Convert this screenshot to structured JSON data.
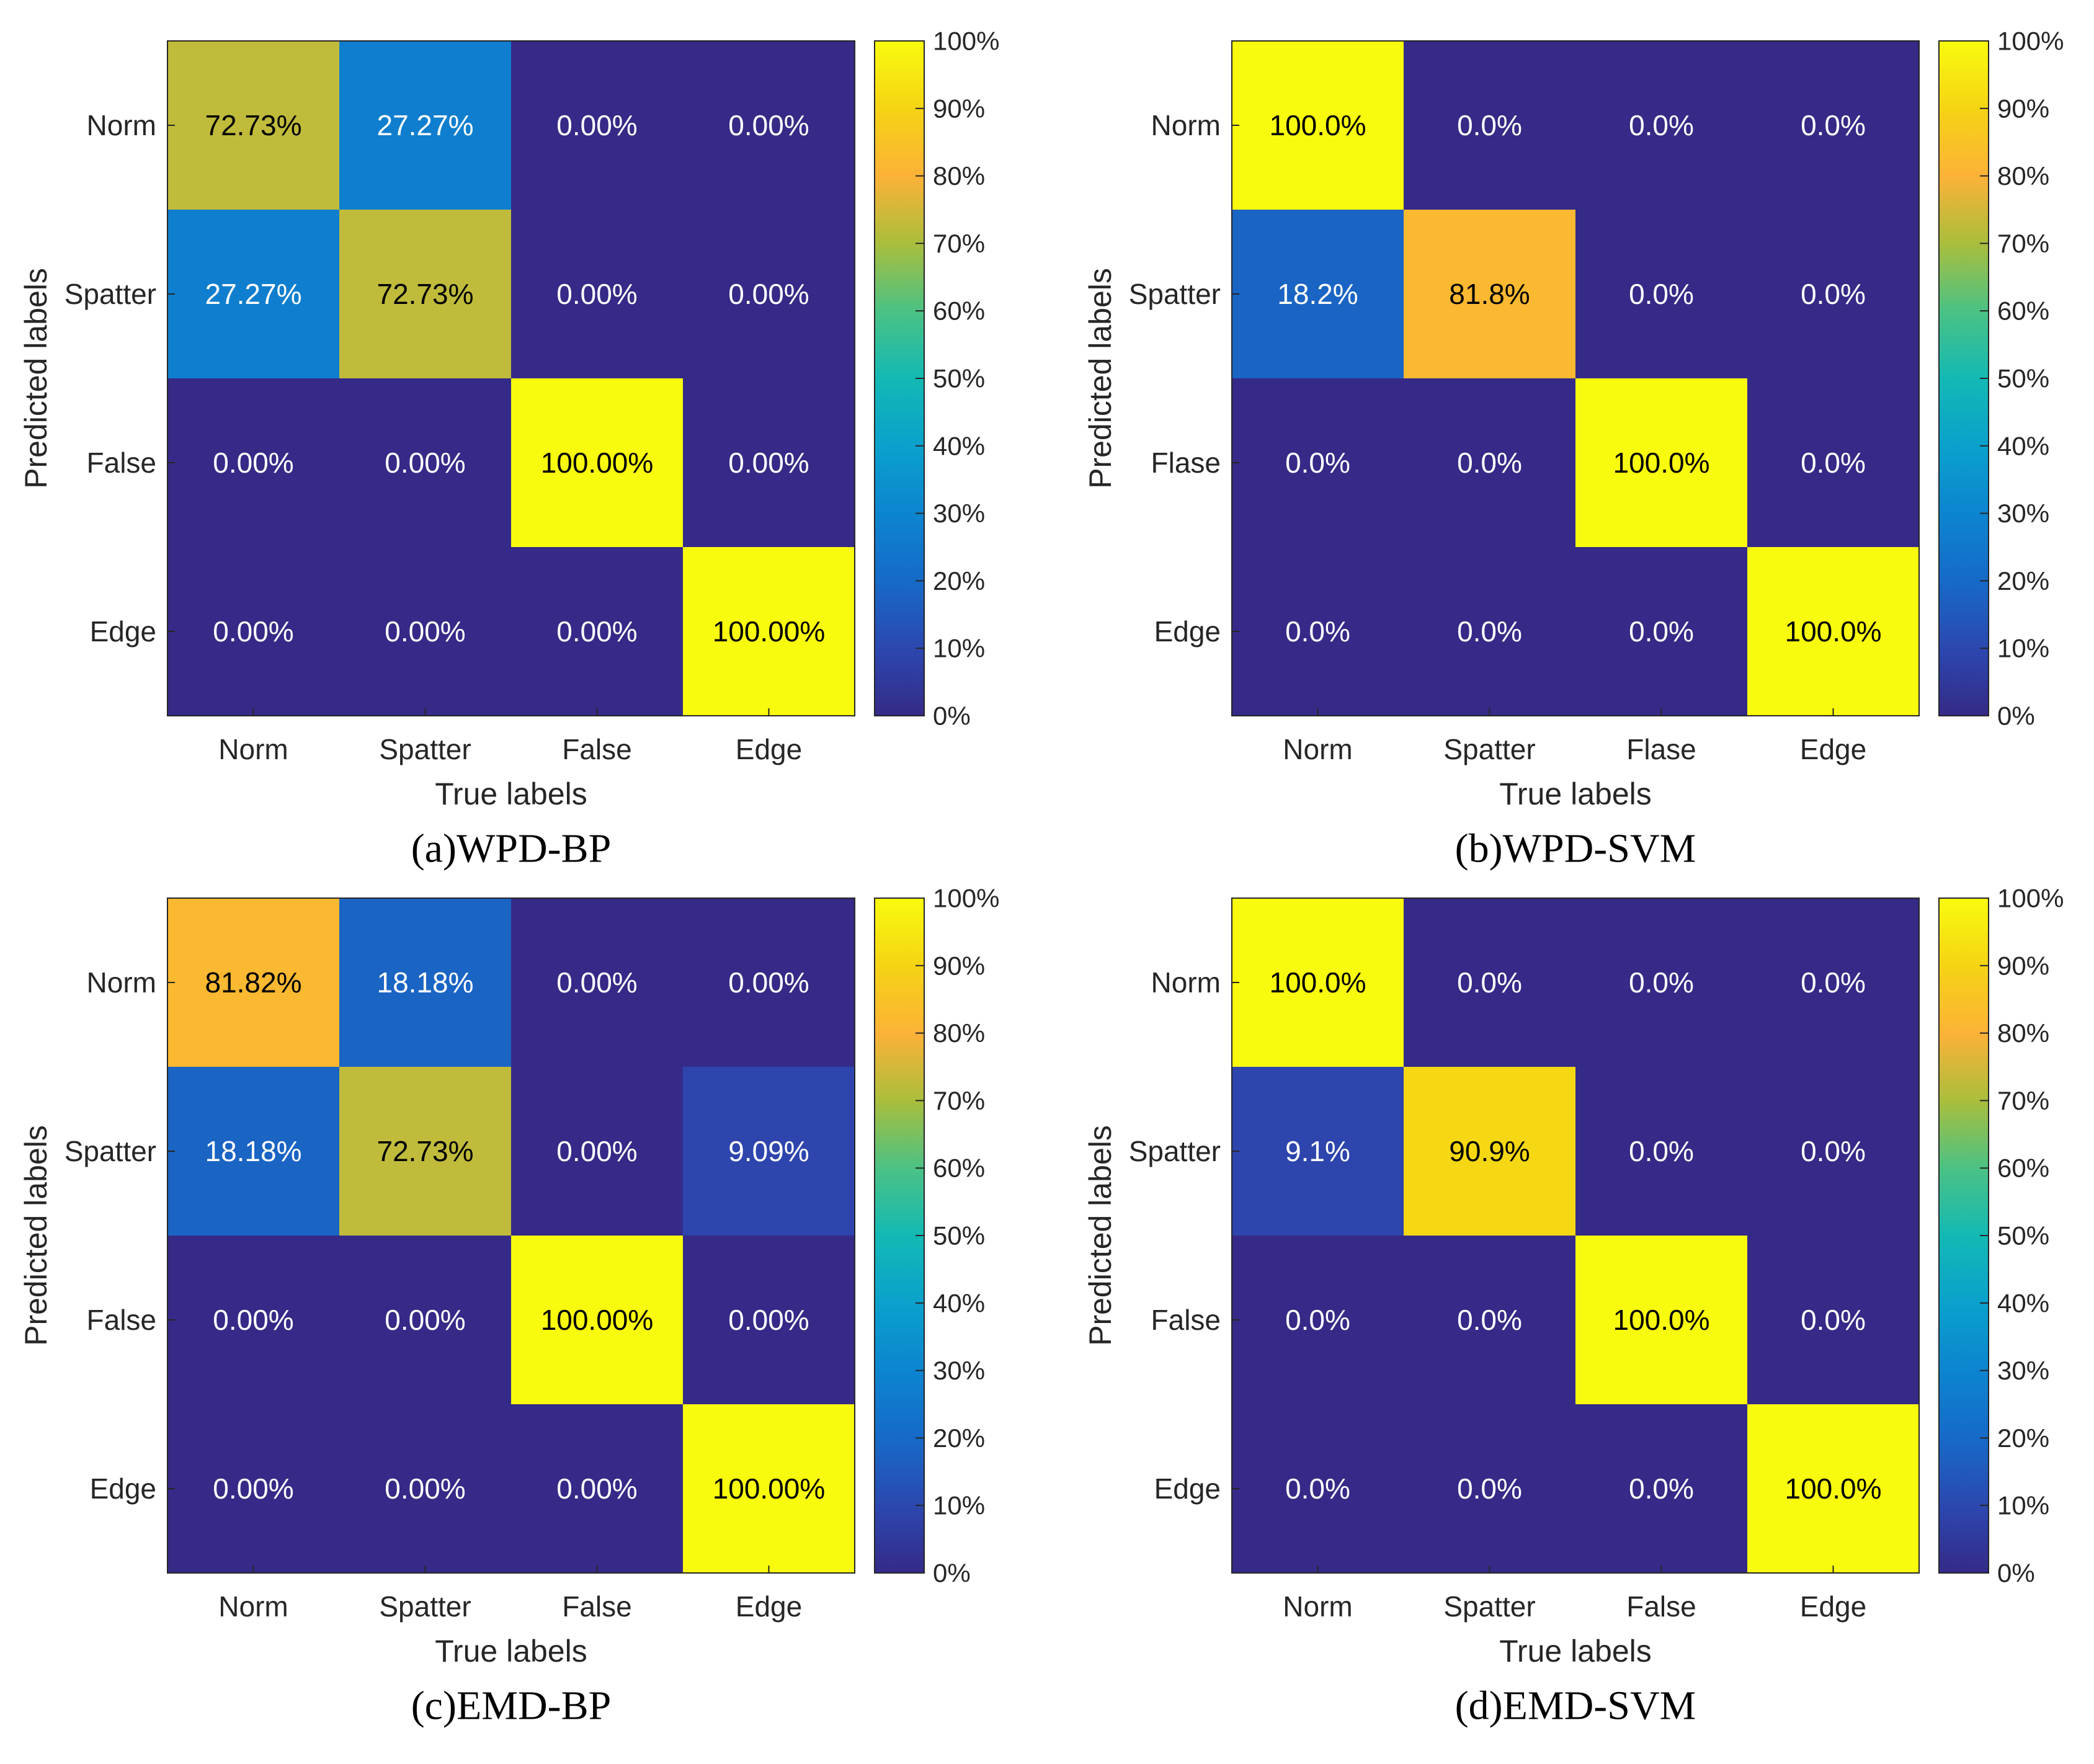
{
  "chart_data": [
    {
      "type": "heatmap",
      "title": "(a)WPD-BP",
      "xlabel": "True labels",
      "ylabel": "Predicted labels",
      "x_categories": [
        "Norm",
        "Spatter",
        "False",
        "Edge"
      ],
      "y_categories": [
        "Norm",
        "Spatter",
        "False",
        "Edge"
      ],
      "values": [
        [
          72.73,
          27.27,
          0,
          0
        ],
        [
          27.27,
          72.73,
          0,
          0
        ],
        [
          0,
          0,
          100,
          0
        ],
        [
          0,
          0,
          0,
          100
        ]
      ],
      "cell_labels": [
        [
          "72.73%",
          "27.27%",
          "0.00%",
          "0.00%"
        ],
        [
          "27.27%",
          "72.73%",
          "0.00%",
          "0.00%"
        ],
        [
          "0.00%",
          "0.00%",
          "100.00%",
          "0.00%"
        ],
        [
          "0.00%",
          "0.00%",
          "0.00%",
          "100.00%"
        ]
      ],
      "colorbar": {
        "range": [
          0,
          100
        ],
        "tick_labels": [
          "0%",
          "10%",
          "20%",
          "30%",
          "40%",
          "50%",
          "60%",
          "70%",
          "80%",
          "90%",
          "100%"
        ]
      }
    },
    {
      "type": "heatmap",
      "title": "(b)WPD-SVM",
      "xlabel": "True labels",
      "ylabel": "Predicted labels",
      "x_categories": [
        "Norm",
        "Spatter",
        "Flase",
        "Edge"
      ],
      "y_categories": [
        "Norm",
        "Spatter",
        "Flase",
        "Edge"
      ],
      "values": [
        [
          100,
          0,
          0,
          0
        ],
        [
          18.2,
          81.8,
          0,
          0
        ],
        [
          0,
          0,
          100,
          0
        ],
        [
          0,
          0,
          0,
          100
        ]
      ],
      "cell_labels": [
        [
          "100.0%",
          "0.0%",
          "0.0%",
          "0.0%"
        ],
        [
          "18.2%",
          "81.8%",
          "0.0%",
          "0.0%"
        ],
        [
          "0.0%",
          "0.0%",
          "100.0%",
          "0.0%"
        ],
        [
          "0.0%",
          "0.0%",
          "0.0%",
          "100.0%"
        ]
      ],
      "colorbar": {
        "range": [
          0,
          100
        ],
        "tick_labels": [
          "0%",
          "10%",
          "20%",
          "30%",
          "40%",
          "50%",
          "60%",
          "70%",
          "80%",
          "90%",
          "100%"
        ]
      }
    },
    {
      "type": "heatmap",
      "title": "(c)EMD-BP",
      "xlabel": "True labels",
      "ylabel": "Predicted labels",
      "x_categories": [
        "Norm",
        "Spatter",
        "False",
        "Edge"
      ],
      "y_categories": [
        "Norm",
        "Spatter",
        "False",
        "Edge"
      ],
      "values": [
        [
          81.82,
          18.18,
          0,
          0
        ],
        [
          18.18,
          72.73,
          0,
          9.09
        ],
        [
          0,
          0,
          100,
          0
        ],
        [
          0,
          0,
          0,
          100
        ]
      ],
      "cell_labels": [
        [
          "81.82%",
          "18.18%",
          "0.00%",
          "0.00%"
        ],
        [
          "18.18%",
          "72.73%",
          "0.00%",
          "9.09%"
        ],
        [
          "0.00%",
          "0.00%",
          "100.00%",
          "0.00%"
        ],
        [
          "0.00%",
          "0.00%",
          "0.00%",
          "100.00%"
        ]
      ],
      "colorbar": {
        "range": [
          0,
          100
        ],
        "tick_labels": [
          "0%",
          "10%",
          "20%",
          "30%",
          "40%",
          "50%",
          "60%",
          "70%",
          "80%",
          "90%",
          "100%"
        ]
      }
    },
    {
      "type": "heatmap",
      "title": "(d)EMD-SVM",
      "xlabel": "True labels",
      "ylabel": "Predicted labels",
      "x_categories": [
        "Norm",
        "Spatter",
        "False",
        "Edge"
      ],
      "y_categories": [
        "Norm",
        "Spatter",
        "False",
        "Edge"
      ],
      "values": [
        [
          100,
          0,
          0,
          0
        ],
        [
          9.1,
          90.9,
          0,
          0
        ],
        [
          0,
          0,
          100,
          0
        ],
        [
          0,
          0,
          0,
          100
        ]
      ],
      "cell_labels": [
        [
          "100.0%",
          "0.0%",
          "0.0%",
          "0.0%"
        ],
        [
          "9.1%",
          "90.9%",
          "0.0%",
          "0.0%"
        ],
        [
          "0.0%",
          "0.0%",
          "100.0%",
          "0.0%"
        ],
        [
          "0.0%",
          "0.0%",
          "0.0%",
          "100.0%"
        ]
      ],
      "colorbar": {
        "range": [
          0,
          100
        ],
        "tick_labels": [
          "0%",
          "10%",
          "20%",
          "30%",
          "40%",
          "50%",
          "60%",
          "70%",
          "80%",
          "90%",
          "100%"
        ]
      }
    }
  ]
}
